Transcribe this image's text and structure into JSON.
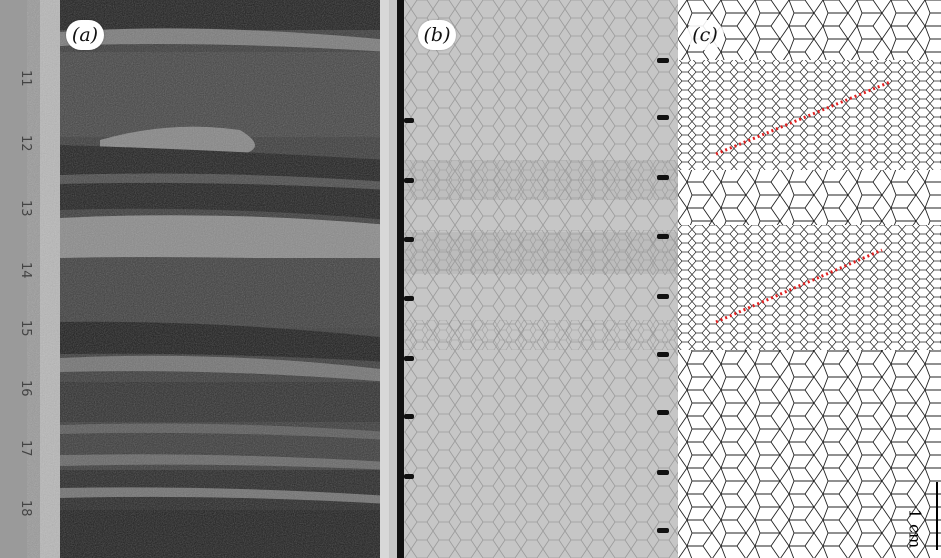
{
  "panels": [
    {
      "id": "a",
      "label": "(a)",
      "description_kind": "dark-layered-core"
    },
    {
      "id": "b",
      "label": "(b)",
      "description_kind": "grain-boundary-micrograph"
    },
    {
      "id": "c",
      "label": "(c)",
      "description_kind": "grain-boundary-tracing"
    }
  ],
  "ruler_numbers": [
    "11",
    "12",
    "13",
    "14",
    "15",
    "16",
    "17",
    "18"
  ],
  "scale_bar": {
    "text": "1 cm"
  },
  "colors": {
    "dark_panel": "#2b2b2b",
    "light_band": "#8c8c8c",
    "micrograph_bg": "#c4c4c4",
    "tracing_line": "#222222",
    "annotation_dotted": "#e02020"
  }
}
